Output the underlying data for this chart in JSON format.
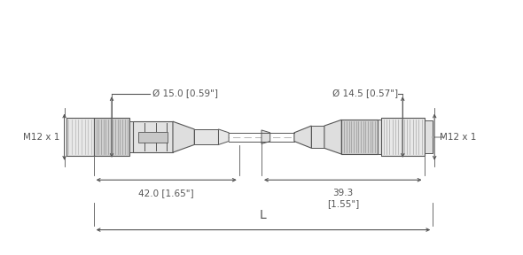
{
  "bg_color": "#ffffff",
  "line_color": "#555555",
  "dim_color": "#555555",
  "left_connector": {
    "label_thread": "M12 x 1",
    "dia_label": "Ø 15.0 [0.59\"]",
    "dim42_label": "42.0 [1.65\"]"
  },
  "right_connector": {
    "label_thread": "M12 x 1",
    "dia_label": "Ø 14.5 [0.57\"]",
    "dim39_label": "39.3\n[1.55\"]"
  },
  "L_label": "L"
}
